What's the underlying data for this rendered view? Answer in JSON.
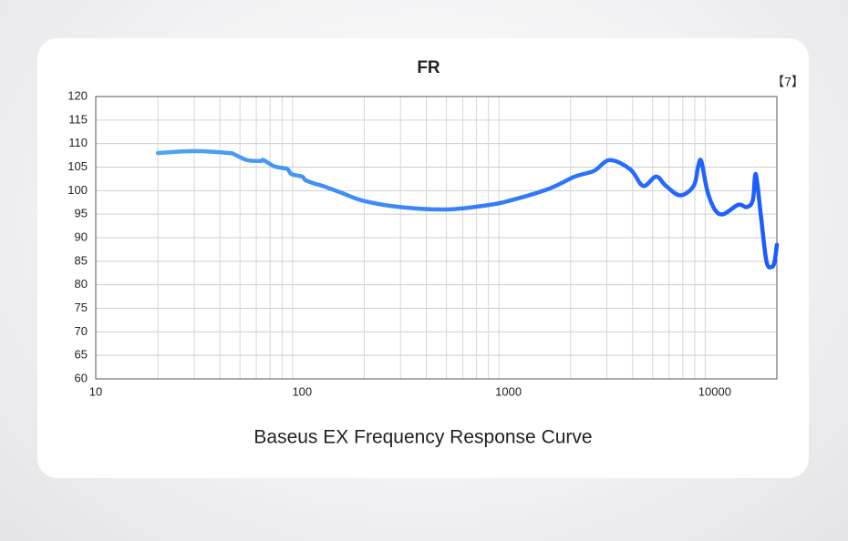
{
  "chart_data": {
    "type": "line",
    "title": "FR",
    "annotation": "【7】",
    "caption": "Baseus EX Frequency Response Curve",
    "x": [
      20,
      30,
      44,
      47,
      54,
      63,
      65,
      73,
      81,
      85,
      89,
      100,
      104,
      115,
      130,
      156,
      200,
      300,
      500,
      760,
      1000,
      1550,
      2100,
      2600,
      3100,
      3900,
      4500,
      5200,
      5800,
      6800,
      7900,
      8300,
      8600,
      9200,
      10000,
      11000,
      13000,
      14300,
      15300,
      15800,
      16700,
      17800,
      18900,
      19500,
      20000
    ],
    "values": [
      108,
      108.4,
      108,
      107.7,
      106.5,
      106.3,
      106.5,
      105.2,
      104.8,
      104.6,
      103.5,
      103,
      102.2,
      101.5,
      100.8,
      99.5,
      97.8,
      96.5,
      96,
      96.8,
      97.8,
      100.3,
      103,
      104.2,
      106.5,
      104.5,
      101,
      103,
      101,
      99,
      101,
      105,
      106.3,
      100,
      96,
      95,
      97,
      96.5,
      98,
      103.5,
      95,
      85,
      83.8,
      85,
      88.5
    ],
    "colors": [
      "#55acf0",
      "#1a5bff"
    ],
    "xlim": [
      10,
      20000
    ],
    "xticks": [
      10,
      100,
      1000,
      10000
    ],
    "log_x": true,
    "ylim": [
      60,
      120
    ],
    "yticks": [
      60,
      65,
      70,
      75,
      80,
      85,
      90,
      95,
      100,
      105,
      110,
      115,
      120
    ],
    "grid": true
  }
}
